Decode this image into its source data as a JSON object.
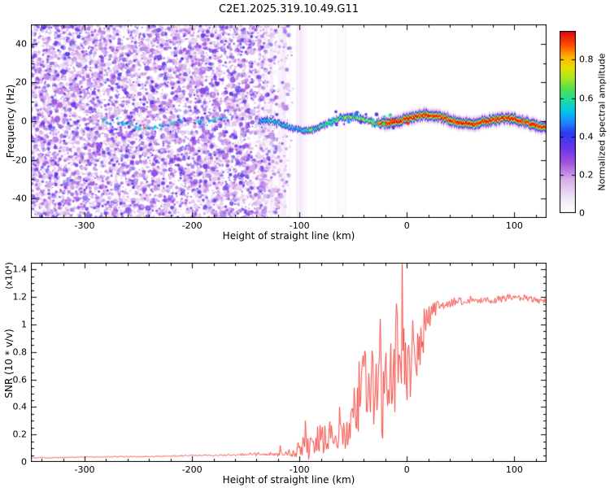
{
  "title": "C2E1.2025.319.10.49.G11",
  "chart_data": [
    {
      "type": "heatmap",
      "title": "C2E1.2025.319.10.49.G11",
      "xlabel": "Height of straight line (km)",
      "ylabel": "Frequency (Hz)",
      "xlim": [
        -350,
        130
      ],
      "ylim": [
        -50,
        50
      ],
      "x_ticks": [
        -300,
        -200,
        -100,
        0,
        100
      ],
      "x_tick_labels": [
        "-300",
        "-200",
        "-100",
        "0",
        "100"
      ],
      "x_minor_step": 20,
      "y_ticks": [
        -40,
        -20,
        0,
        20,
        40
      ],
      "y_tick_labels": [
        "-40",
        "-20",
        "0",
        "20",
        "40"
      ],
      "y_minor_step": 10,
      "grid": false,
      "legend": "none",
      "description": "Spectrogram: dense purple random noise for heights below about -110 km; faint cyan-green trace near 0 Hz between -285 and -170 km; from about -135 km a wiggling narrow spectral line near 0 Hz strengthens from green/yellow to a red-cored band that runs flat to 130 km; faint lavender vertical streaks between -140 and -60 km; white background elsewhere.",
      "colorbar": {
        "label": "Normalized spectral amplitude",
        "ticks": [
          0,
          0.2,
          0.4,
          0.6,
          0.8
        ],
        "tick_labels": [
          "0",
          "0.2",
          "0.4",
          "0.6",
          "0.8"
        ],
        "range": [
          0,
          0.95
        ],
        "colormap_stops": [
          [
            0.0,
            "#ffffff"
          ],
          [
            0.08,
            "#f2e6f7"
          ],
          [
            0.18,
            "#d9b0e8"
          ],
          [
            0.28,
            "#a050e0"
          ],
          [
            0.36,
            "#6535e8"
          ],
          [
            0.44,
            "#2b3cf0"
          ],
          [
            0.5,
            "#1a8cff"
          ],
          [
            0.56,
            "#00c8e8"
          ],
          [
            0.62,
            "#20dca0"
          ],
          [
            0.68,
            "#50e050"
          ],
          [
            0.74,
            "#a8e820"
          ],
          [
            0.8,
            "#e8e000"
          ],
          [
            0.86,
            "#ffb000"
          ],
          [
            0.92,
            "#ff5000"
          ],
          [
            1.0,
            "#e00010"
          ]
        ]
      },
      "render": {
        "seed": 1337,
        "noise_xmax_km": -104,
        "noise_fade_start_km": -150,
        "noise_blobs": 8500,
        "trace_x_range_km": [
          -285,
          -168
        ],
        "band_x_start_km": -138,
        "band_red_core_from_km": -30
      }
    },
    {
      "type": "line",
      "title": "",
      "xlabel": "Height of straight line (km)",
      "ylabel": "SNR (10 * v/v)",
      "scale_label": "(x10⁴)",
      "xlim": [
        -350,
        130
      ],
      "ylim": [
        0,
        1.45
      ],
      "x_ticks": [
        -300,
        -200,
        -100,
        0,
        100
      ],
      "x_tick_labels": [
        "-300",
        "-200",
        "-100",
        "0",
        "100"
      ],
      "x_minor_step": 20,
      "y_ticks": [
        0,
        0.2,
        0.4,
        0.6,
        0.8,
        1.0,
        1.2,
        1.4
      ],
      "y_tick_labels": [
        "0",
        "0.2",
        "0.4",
        "0.6",
        "0.8",
        "1",
        "1.2",
        "1.4"
      ],
      "y_minor_step": 0.05,
      "grid": false,
      "legend": "none",
      "color": "#f23b34",
      "series": [
        {
          "name": "SNR",
          "anchors": [
            [
              -350,
              0.03
            ],
            [
              -320,
              0.032
            ],
            [
              -300,
              0.035
            ],
            [
              -270,
              0.038
            ],
            [
              -250,
              0.04
            ],
            [
              -230,
              0.042
            ],
            [
              -210,
              0.045
            ],
            [
              -190,
              0.048
            ],
            [
              -170,
              0.05
            ],
            [
              -155,
              0.05
            ],
            [
              -145,
              0.06
            ],
            [
              -135,
              0.055
            ],
            [
              -125,
              0.06
            ],
            [
              -115,
              0.065
            ],
            [
              -108,
              0.07
            ],
            [
              -102,
              0.09
            ],
            [
              -97,
              0.12
            ],
            [
              -92,
              0.1
            ],
            [
              -87,
              0.14
            ],
            [
              -82,
              0.18
            ],
            [
              -77,
              0.16
            ],
            [
              -72,
              0.2
            ],
            [
              -67,
              0.15
            ],
            [
              -62,
              0.17
            ],
            [
              -57,
              0.22
            ],
            [
              -52,
              0.28
            ],
            [
              -47,
              0.42
            ],
            [
              -43,
              0.55
            ],
            [
              -39,
              0.6
            ],
            [
              -35,
              0.52
            ],
            [
              -31,
              0.58
            ],
            [
              -27,
              0.5
            ],
            [
              -23,
              0.42
            ],
            [
              -19,
              0.5
            ],
            [
              -15,
              0.62
            ],
            [
              -12,
              0.72
            ],
            [
              -9,
              0.85
            ],
            [
              -6,
              1.0
            ],
            [
              -4,
              0.75
            ],
            [
              -2,
              0.6
            ],
            [
              0,
              0.72
            ],
            [
              2,
              0.78
            ],
            [
              4,
              0.72
            ],
            [
              6,
              0.78
            ],
            [
              8,
              0.72
            ],
            [
              10,
              0.82
            ],
            [
              13,
              0.9
            ],
            [
              16,
              0.98
            ],
            [
              20,
              1.05
            ],
            [
              24,
              1.1
            ],
            [
              28,
              1.13
            ],
            [
              34,
              1.15
            ],
            [
              40,
              1.16
            ],
            [
              50,
              1.17
            ],
            [
              60,
              1.18
            ],
            [
              70,
              1.17
            ],
            [
              80,
              1.18
            ],
            [
              90,
              1.19
            ],
            [
              100,
              1.2
            ],
            [
              110,
              1.19
            ],
            [
              120,
              1.18
            ],
            [
              130,
              1.17
            ]
          ],
          "noise_amp": [
            [
              -350,
              0.004
            ],
            [
              -200,
              0.005
            ],
            [
              -160,
              0.008
            ],
            [
              -140,
              0.015
            ],
            [
              -125,
              0.02
            ],
            [
              -110,
              0.03
            ],
            [
              -100,
              0.06
            ],
            [
              -90,
              0.09
            ],
            [
              -80,
              0.11
            ],
            [
              -70,
              0.11
            ],
            [
              -60,
              0.12
            ],
            [
              -52,
              0.16
            ],
            [
              -45,
              0.25
            ],
            [
              -38,
              0.3
            ],
            [
              -30,
              0.33
            ],
            [
              -22,
              0.33
            ],
            [
              -15,
              0.38
            ],
            [
              -10,
              0.42
            ],
            [
              -6,
              0.45
            ],
            [
              -2,
              0.35
            ],
            [
              2,
              0.3
            ],
            [
              6,
              0.3
            ],
            [
              10,
              0.25
            ],
            [
              14,
              0.18
            ],
            [
              18,
              0.1
            ],
            [
              24,
              0.06
            ],
            [
              30,
              0.04
            ],
            [
              50,
              0.03
            ],
            [
              130,
              0.025
            ]
          ],
          "spikes": [
            [
              -5,
              1.44
            ],
            [
              -25,
              1.04
            ],
            [
              -45,
              0.73
            ],
            [
              -63,
              0.4
            ],
            [
              -95,
              0.3
            ],
            [
              -118,
              0.12
            ]
          ]
        }
      ],
      "render": {
        "seed": 4242
      }
    }
  ]
}
